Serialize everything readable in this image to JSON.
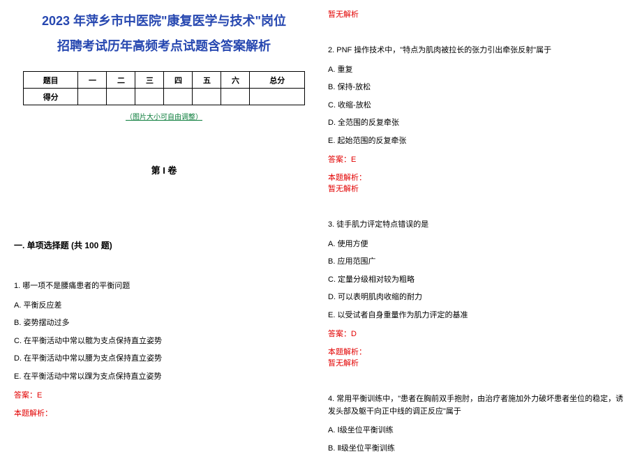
{
  "title_line1": "2023 年萍乡市中医院\"康复医学与技术\"岗位",
  "title_line2": "招聘考试历年高频考点试题含答案解析",
  "score_table": {
    "header": [
      "题目",
      "一",
      "二",
      "三",
      "四",
      "五",
      "六",
      "总分"
    ],
    "row_label": "得分"
  },
  "image_note": "（图片大小可自由调整）",
  "volume": "第 I 卷",
  "section_head": "一. 单项选择题 (共 100 题)",
  "q1": {
    "stem": "1. 哪一项不是腰痛患者的平衡问题",
    "opts": [
      "A. 平衡反应差",
      "B. 姿势摆动过多",
      "C. 在平衡活动中常以髋为支点保持直立姿势",
      "D. 在平衡活动中常以腰为支点保持直立姿势",
      "E. 在平衡活动中常以踝为支点保持直立姿势"
    ],
    "answer": "答案：E",
    "analysis_label": "本题解析：",
    "analysis_none": "暂无解析"
  },
  "q2": {
    "stem": "2. PNF 操作技术中，\"特点为肌肉被拉长的张力引出牵张反射\"属于",
    "opts": [
      "A. 重复",
      "B. 保持-放松",
      "C. 收缩-放松",
      "D. 全范围的反复牵张",
      "E. 起始范围的反复牵张"
    ],
    "answer": "答案：E",
    "analysis_label": "本题解析：",
    "analysis_none": "暂无解析"
  },
  "q3": {
    "stem": "3. 徒手肌力评定特点错误的是",
    "opts": [
      "A. 使用方便",
      "B. 应用范围广",
      "C. 定量分级相对较为粗略",
      "D. 可以表明肌肉收缩的耐力",
      "E. 以受试者自身重量作为肌力评定的基准"
    ],
    "answer": "答案：D",
    "analysis_label": "本题解析：",
    "analysis_none": "暂无解析"
  },
  "q4": {
    "stem": "4. 常用平衡训练中，\"患者在胸前双手抱肘，由治疗者施加外力破坏患者坐位的稳定，诱发头部及躯干向正中线的调正反应\"属于",
    "opts": [
      "A. Ⅰ级坐位平衡训练",
      "B. Ⅱ级坐位平衡训练"
    ]
  },
  "colors": {
    "title": "#2647b0",
    "red": "#e20000",
    "green": "#0a7c3a",
    "border": "#000000",
    "bg": "#ffffff"
  }
}
